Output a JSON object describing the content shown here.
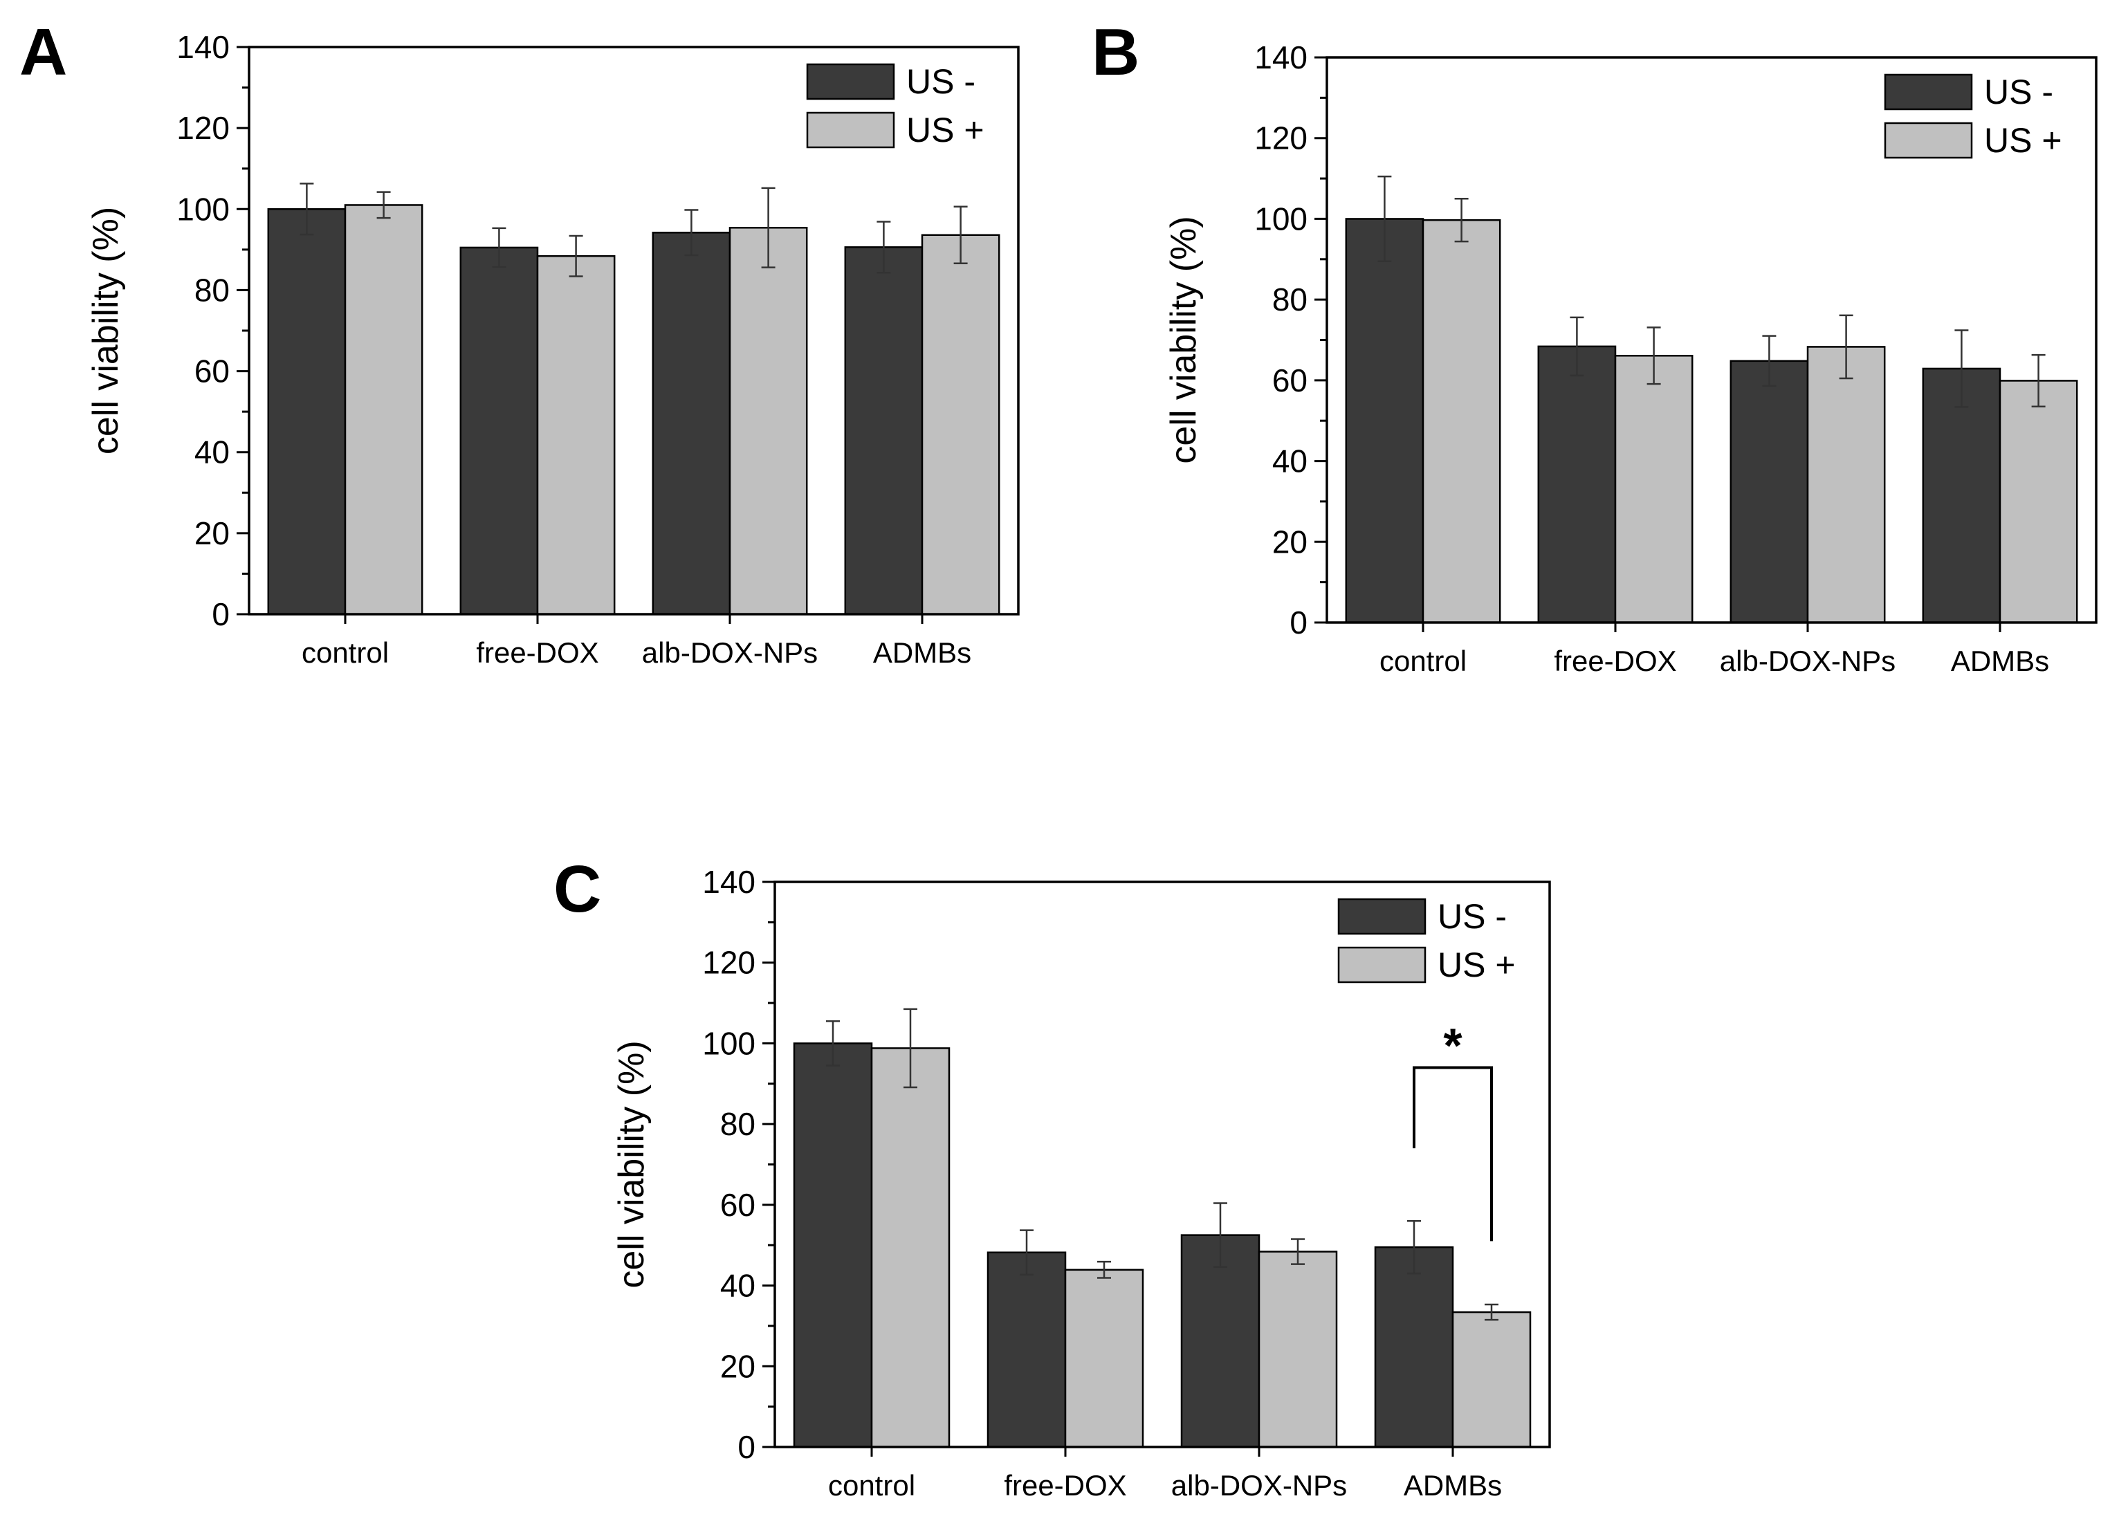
{
  "colors": {
    "us_minus": "#3a3a3a",
    "us_plus": "#c0c0c0",
    "axis": "#000000",
    "error_bar": "#333333"
  },
  "chart_data": [
    {
      "panel": "A",
      "type": "bar",
      "ylabel": "cell viability (%)",
      "ylim": [
        0,
        140
      ],
      "yticks": [
        0,
        20,
        40,
        60,
        80,
        100,
        120,
        140
      ],
      "legend_position": "top-right",
      "categories": [
        "control",
        "free-DOX",
        "alb-DOX-NPs",
        "ADMBs"
      ],
      "series": [
        {
          "name": "US -",
          "color_key": "us_minus",
          "values": [
            100,
            90.5,
            94.2,
            90.6
          ],
          "errors": [
            6.3,
            4.8,
            5.6,
            6.3
          ]
        },
        {
          "name": "US +",
          "color_key": "us_plus",
          "values": [
            101,
            88.4,
            95.4,
            93.6
          ],
          "errors": [
            3.2,
            5.0,
            9.8,
            7.0
          ]
        }
      ],
      "annotations": []
    },
    {
      "panel": "B",
      "type": "bar",
      "ylabel": "cell viability (%)",
      "ylim": [
        0,
        140
      ],
      "yticks": [
        0,
        20,
        40,
        60,
        80,
        100,
        120,
        140
      ],
      "legend_position": "top-right",
      "categories": [
        "control",
        "free-DOX",
        "alb-DOX-NPs",
        "ADMBs"
      ],
      "series": [
        {
          "name": "US -",
          "color_key": "us_minus",
          "values": [
            100,
            68.4,
            64.8,
            62.9
          ],
          "errors": [
            10.5,
            7.2,
            6.2,
            9.5
          ]
        },
        {
          "name": "US +",
          "color_key": "us_plus",
          "values": [
            99.7,
            66.1,
            68.3,
            59.9
          ],
          "errors": [
            5.3,
            7.0,
            7.8,
            6.4
          ]
        }
      ],
      "annotations": []
    },
    {
      "panel": "C",
      "type": "bar",
      "ylabel": "cell viability (%)",
      "ylim": [
        0,
        140
      ],
      "yticks": [
        0,
        20,
        40,
        60,
        80,
        100,
        120,
        140
      ],
      "legend_position": "top-right",
      "categories": [
        "control",
        "free-DOX",
        "alb-DOX-NPs",
        "ADMBs"
      ],
      "series": [
        {
          "name": "US -",
          "color_key": "us_minus",
          "values": [
            100,
            48.2,
            52.5,
            49.5
          ],
          "errors": [
            5.5,
            5.5,
            7.9,
            6.5
          ]
        },
        {
          "name": "US +",
          "color_key": "us_plus",
          "values": [
            98.8,
            43.9,
            48.4,
            33.4
          ],
          "errors": [
            9.7,
            2.0,
            3.1,
            1.9
          ]
        }
      ],
      "annotations": [
        {
          "text": "*",
          "category_index": 3,
          "left_y": 74,
          "right_y": 51,
          "top_y": 94
        }
      ]
    }
  ]
}
